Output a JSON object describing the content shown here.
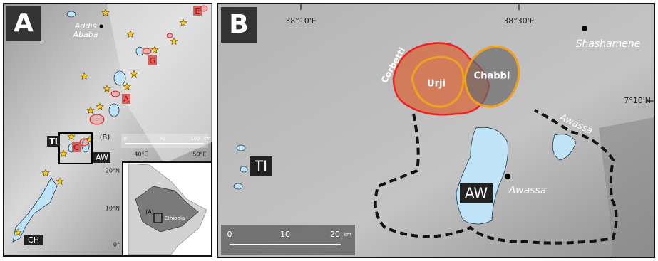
{
  "panel_a": {
    "label": "A",
    "city": [
      "Addis",
      "Ababa"
    ],
    "box_label": "(B)",
    "lakes": [
      "TI",
      "AW",
      "CH"
    ],
    "red_labels": [
      "E",
      "G",
      "A",
      "C"
    ],
    "scale_ticks": [
      "0",
      "50",
      "100"
    ],
    "scale_unit": "km",
    "lon_ticks": [
      "40°E",
      "50°E"
    ],
    "lat_ticks": [
      "20°N",
      "10°N",
      "0°"
    ],
    "inset": {
      "box_label": "(A)",
      "country": "Ethiopia"
    }
  },
  "panel_b": {
    "label": "B",
    "lon_ticks": [
      "38°10'E",
      "38°30'E"
    ],
    "lat_tick": "7°10'N",
    "town": "Shashamene",
    "calderas": [
      "Corbetti",
      "Urji",
      "Chabbi"
    ],
    "lake_label": "Awassa",
    "town2": "Awassa",
    "lakes": [
      "TI",
      "AW"
    ],
    "scale_ticks": [
      "0",
      "10",
      "20"
    ],
    "scale_unit": "km"
  }
}
